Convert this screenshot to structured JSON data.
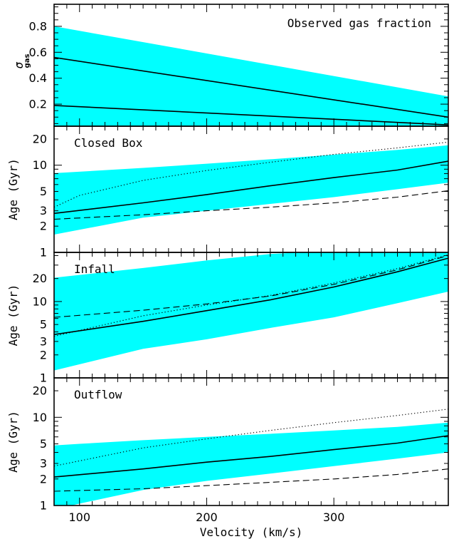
{
  "chart_data": [
    {
      "type": "area",
      "title": "Observed gas fraction",
      "ylabel": "σ",
      "ylabel_sub": "gas",
      "xlabel": "",
      "xlim": [
        80,
        390
      ],
      "ylim": [
        0.03,
        0.97
      ],
      "yscale": "linear",
      "yticks": [
        0.2,
        0.4,
        0.6,
        0.8
      ],
      "yticklabels": [
        "0.2",
        "0.4",
        "0.6",
        "0.8"
      ],
      "band": {
        "x": [
          80,
          390
        ],
        "lower": [
          0.03,
          0.03
        ],
        "upper": [
          0.8,
          0.26
        ],
        "color": "#00ffff"
      },
      "series": [
        {
          "style": "solid",
          "x": [
            80,
            390
          ],
          "y": [
            0.56,
            0.1
          ]
        },
        {
          "style": "solid",
          "x": [
            80,
            390
          ],
          "y": [
            0.19,
            0.04
          ]
        }
      ]
    },
    {
      "type": "area",
      "title": "Closed Box",
      "ylabel": "Age (Gyr)",
      "xlim": [
        80,
        390
      ],
      "ylim": [
        1,
        28
      ],
      "yscale": "log",
      "yticks": [
        1,
        2,
        3,
        5,
        10,
        20
      ],
      "yticklabels": [
        "1",
        "2",
        "3",
        "5",
        "10",
        "20"
      ],
      "band": {
        "x": [
          80,
          150,
          200,
          250,
          300,
          350,
          390
        ],
        "lower": [
          1.6,
          2.5,
          3.0,
          3.6,
          4.3,
          5.3,
          6.3
        ],
        "upper": [
          8.1,
          9.3,
          10.4,
          11.7,
          13.2,
          15.0,
          16.9
        ],
        "color": "#00ffff"
      },
      "series": [
        {
          "style": "solid",
          "x": [
            80,
            150,
            200,
            250,
            300,
            350,
            390
          ],
          "y": [
            2.8,
            3.7,
            4.6,
            5.8,
            7.2,
            8.8,
            11.1
          ]
        },
        {
          "style": "dotted",
          "x": [
            80,
            100,
            150,
            200,
            250,
            300,
            350,
            390
          ],
          "y": [
            3.3,
            4.5,
            6.7,
            8.7,
            10.8,
            13.3,
            15.8,
            18.4
          ]
        },
        {
          "style": "dashed",
          "x": [
            80,
            150,
            200,
            250,
            300,
            350,
            390
          ],
          "y": [
            2.4,
            2.7,
            3.0,
            3.3,
            3.7,
            4.3,
            5.1
          ]
        }
      ]
    },
    {
      "type": "area",
      "title": "Infall",
      "ylabel": "Age (Gyr)",
      "xlim": [
        80,
        390
      ],
      "ylim": [
        1,
        44
      ],
      "yscale": "log",
      "yticks": [
        1,
        2,
        3,
        5,
        10,
        20
      ],
      "yticklabels": [
        "1",
        "2",
        "3",
        "5",
        "10",
        "20"
      ],
      "band": {
        "x": [
          80,
          150,
          200,
          250,
          300,
          350,
          390
        ],
        "lower": [
          1.25,
          2.4,
          3.2,
          4.5,
          6.2,
          9.5,
          13.5
        ],
        "upper": [
          20.5,
          27.5,
          34.5,
          42.0,
          46.0,
          50.0,
          55.0
        ],
        "color": "#00ffff"
      },
      "series": [
        {
          "style": "solid",
          "x": [
            80,
            150,
            200,
            250,
            300,
            350,
            390
          ],
          "y": [
            3.7,
            5.5,
            7.6,
            10.5,
            15.5,
            24.5,
            37.0
          ]
        },
        {
          "style": "dotted",
          "x": [
            80,
            150,
            200,
            250,
            300,
            350,
            390
          ],
          "y": [
            3.5,
            6.5,
            9.0,
            12.0,
            17.5,
            27.0,
            41.0
          ]
        },
        {
          "style": "dashed",
          "x": [
            80,
            150,
            200,
            250,
            300,
            350,
            390
          ],
          "y": [
            6.2,
            7.7,
            9.3,
            11.8,
            16.8,
            26.0,
            40.0
          ]
        }
      ]
    },
    {
      "type": "area",
      "title": "Outflow",
      "xlabel": "Velocity (km/s)",
      "ylabel": "Age (Gyr)",
      "xlim": [
        80,
        390
      ],
      "ylim": [
        1,
        28
      ],
      "yscale": "log",
      "xticks": [
        100,
        200,
        300
      ],
      "xticklabels": [
        "100",
        "200",
        "300"
      ],
      "yticks": [
        1,
        2,
        3,
        5,
        10,
        20
      ],
      "yticklabels": [
        "1",
        "2",
        "3",
        "5",
        "10",
        "20"
      ],
      "band": {
        "x": [
          80,
          100,
          150,
          200,
          250,
          300,
          350,
          390
        ],
        "lower": [
          0.9,
          1.05,
          1.5,
          1.9,
          2.3,
          2.8,
          3.4,
          4.0
        ],
        "upper": [
          4.8,
          5.0,
          5.5,
          6.0,
          6.5,
          7.1,
          7.8,
          8.7
        ],
        "color": "#00ffff"
      },
      "series": [
        {
          "style": "solid",
          "x": [
            80,
            150,
            200,
            250,
            300,
            350,
            390
          ],
          "y": [
            2.1,
            2.6,
            3.1,
            3.6,
            4.3,
            5.1,
            6.2
          ]
        },
        {
          "style": "dotted",
          "x": [
            80,
            150,
            200,
            250,
            300,
            350,
            390
          ],
          "y": [
            2.8,
            4.5,
            5.7,
            7.1,
            8.7,
            10.5,
            12.4
          ]
        },
        {
          "style": "dashed",
          "x": [
            80,
            150,
            200,
            250,
            300,
            350,
            390
          ],
          "y": [
            1.45,
            1.55,
            1.68,
            1.83,
            2.0,
            2.25,
            2.6
          ]
        }
      ]
    }
  ]
}
